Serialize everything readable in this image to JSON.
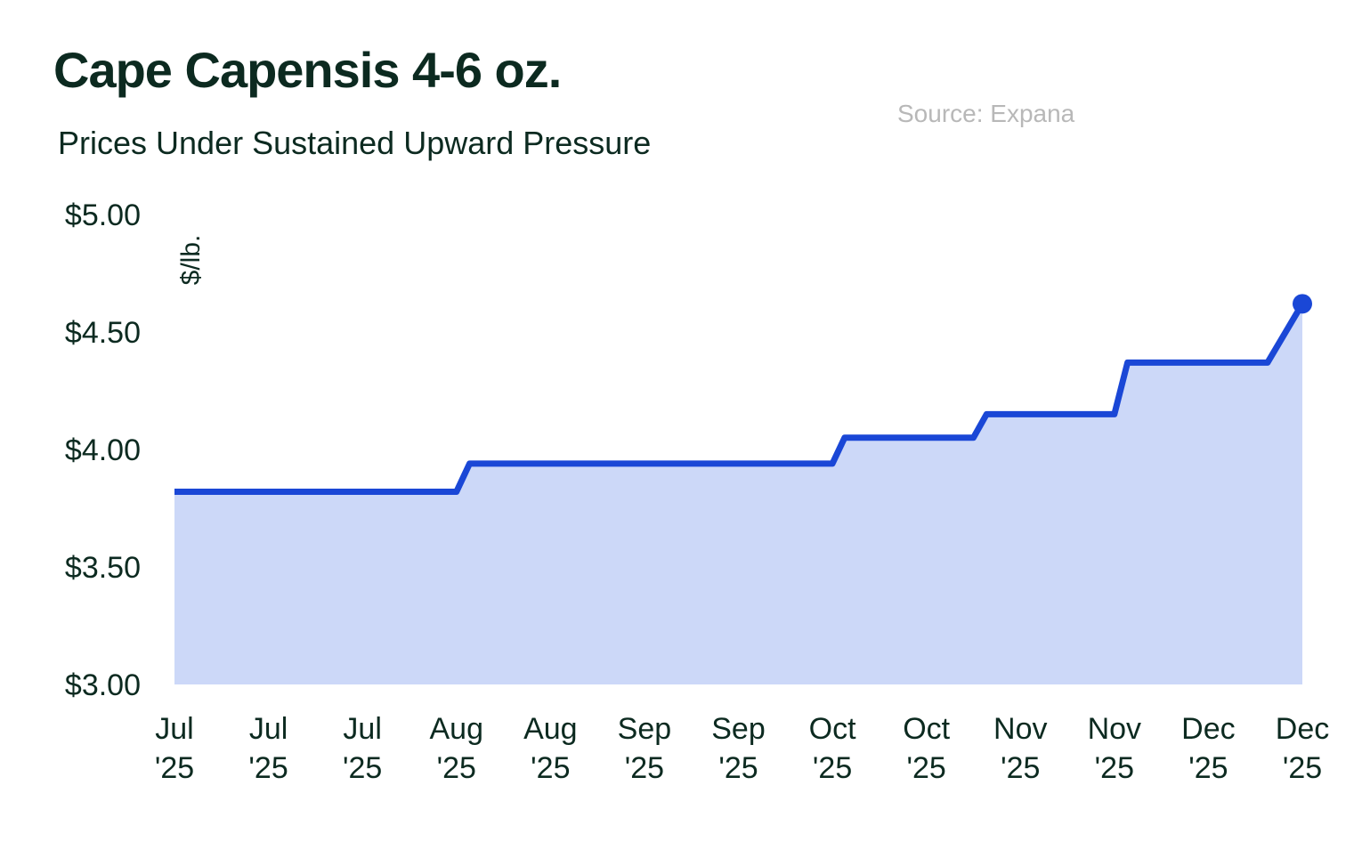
{
  "chart_data": {
    "type": "line",
    "title": "Cape Capensis 4-6 oz.",
    "subtitle": "Prices Under Sustained Upward Pressure",
    "source": "Source: Expana",
    "y_label": "$/lb.",
    "xlim": [
      0,
      12
    ],
    "xticks": [
      {
        "value": 0,
        "label": "Jul '25"
      },
      {
        "value": 1,
        "label": "Jul '25"
      },
      {
        "value": 2,
        "label": "Jul '25"
      },
      {
        "value": 3,
        "label": "Aug '25"
      },
      {
        "value": 4,
        "label": "Aug '25"
      },
      {
        "value": 5,
        "label": "Sep '25"
      },
      {
        "value": 6,
        "label": "Sep '25"
      },
      {
        "value": 7,
        "label": "Oct '25"
      },
      {
        "value": 8,
        "label": "Oct '25"
      },
      {
        "value": 9,
        "label": "Nov '25"
      },
      {
        "value": 10,
        "label": "Nov '25"
      },
      {
        "value": 11,
        "label": "Dec '25"
      },
      {
        "value": 12,
        "label": "Dec '25"
      }
    ],
    "ylim": [
      3,
      5
    ],
    "yticks": [
      {
        "value": 3,
        "label": "$3.00"
      },
      {
        "value": 3.5,
        "label": "$3.50"
      },
      {
        "value": 4,
        "label": "$4.00"
      },
      {
        "value": 4.5,
        "label": "$4.50"
      },
      {
        "value": 5,
        "label": "$5.00"
      }
    ],
    "grid": false,
    "area": true,
    "color": "#1a47d6",
    "fill_color": "#ccd8f8",
    "x": [
      0,
      3.0,
      3.14,
      7.0,
      7.13,
      8.5,
      8.64,
      10.0,
      10.14,
      11.63,
      12
    ],
    "values": [
      3.82,
      3.82,
      3.94,
      3.94,
      4.05,
      4.05,
      4.15,
      4.15,
      4.37,
      4.37,
      4.62
    ]
  }
}
